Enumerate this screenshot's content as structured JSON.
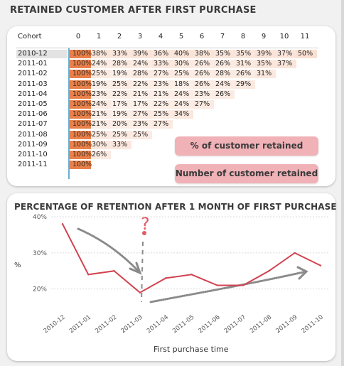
{
  "heatmap": {
    "title": "RETAINED CUSTOMER AFTER FIRST PURCHASE",
    "cohort_header": "Cohort",
    "period_headers": [
      "0",
      "1",
      "2",
      "3",
      "4",
      "5",
      "6",
      "7",
      "8",
      "9",
      "10",
      "11"
    ],
    "rows": [
      {
        "cohort": "2010-12",
        "values": [
          "100%",
          "38%",
          "33%",
          "39%",
          "36%",
          "40%",
          "38%",
          "35%",
          "35%",
          "39%",
          "37%",
          "50%"
        ]
      },
      {
        "cohort": "2011-01",
        "values": [
          "100%",
          "24%",
          "28%",
          "24%",
          "33%",
          "30%",
          "26%",
          "26%",
          "31%",
          "35%",
          "37%"
        ]
      },
      {
        "cohort": "2011-02",
        "values": [
          "100%",
          "25%",
          "19%",
          "28%",
          "27%",
          "25%",
          "26%",
          "28%",
          "26%",
          "31%"
        ]
      },
      {
        "cohort": "2011-03",
        "values": [
          "100%",
          "19%",
          "25%",
          "22%",
          "23%",
          "18%",
          "26%",
          "24%",
          "29%"
        ]
      },
      {
        "cohort": "2011-04",
        "values": [
          "100%",
          "23%",
          "22%",
          "21%",
          "21%",
          "24%",
          "23%",
          "26%"
        ]
      },
      {
        "cohort": "2011-05",
        "values": [
          "100%",
          "24%",
          "17%",
          "17%",
          "22%",
          "24%",
          "27%"
        ]
      },
      {
        "cohort": "2011-06",
        "values": [
          "100%",
          "21%",
          "19%",
          "27%",
          "25%",
          "34%"
        ]
      },
      {
        "cohort": "2011-07",
        "values": [
          "100%",
          "21%",
          "20%",
          "23%",
          "27%"
        ]
      },
      {
        "cohort": "2011-08",
        "values": [
          "100%",
          "25%",
          "25%",
          "25%"
        ]
      },
      {
        "cohort": "2011-09",
        "values": [
          "100%",
          "30%",
          "33%"
        ]
      },
      {
        "cohort": "2011-10",
        "values": [
          "100%",
          "26%"
        ]
      },
      {
        "cohort": "2011-11",
        "values": [
          "100%"
        ]
      }
    ],
    "selected_cohort": "2010-12",
    "buttons": {
      "percent_label": "% of customer retained",
      "number_label": "Number of customer retained"
    },
    "colors": {
      "period0": "#e9804a",
      "tint": "#f9e4dc",
      "tint_alt": "#fbefe9"
    }
  },
  "line_chart_title": "PERCENTAGE OF RETENTION AFTER 1 MONTH OF FIRST PURCHASE",
  "chart_data": {
    "type": "line",
    "title": "PERCENTAGE OF RETENTION AFTER 1 MONTH OF FIRST PURCHASE",
    "xlabel": "First purchase time",
    "ylabel": "%",
    "x": [
      "2010-12",
      "2011-01",
      "2011-02",
      "2011-03",
      "2011-04",
      "2011-05",
      "2011-06",
      "2011-07",
      "2011-08",
      "2011-09",
      "2011-10"
    ],
    "series": [
      {
        "values": [
          38,
          24,
          25,
          19,
          23,
          24,
          21,
          21,
          25,
          30,
          26.5
        ]
      }
    ],
    "yticks": [
      "20%",
      "30%",
      "40%"
    ],
    "ylim": [
      15,
      41
    ],
    "color": "#d1424f",
    "annotation_symbol": "?"
  }
}
